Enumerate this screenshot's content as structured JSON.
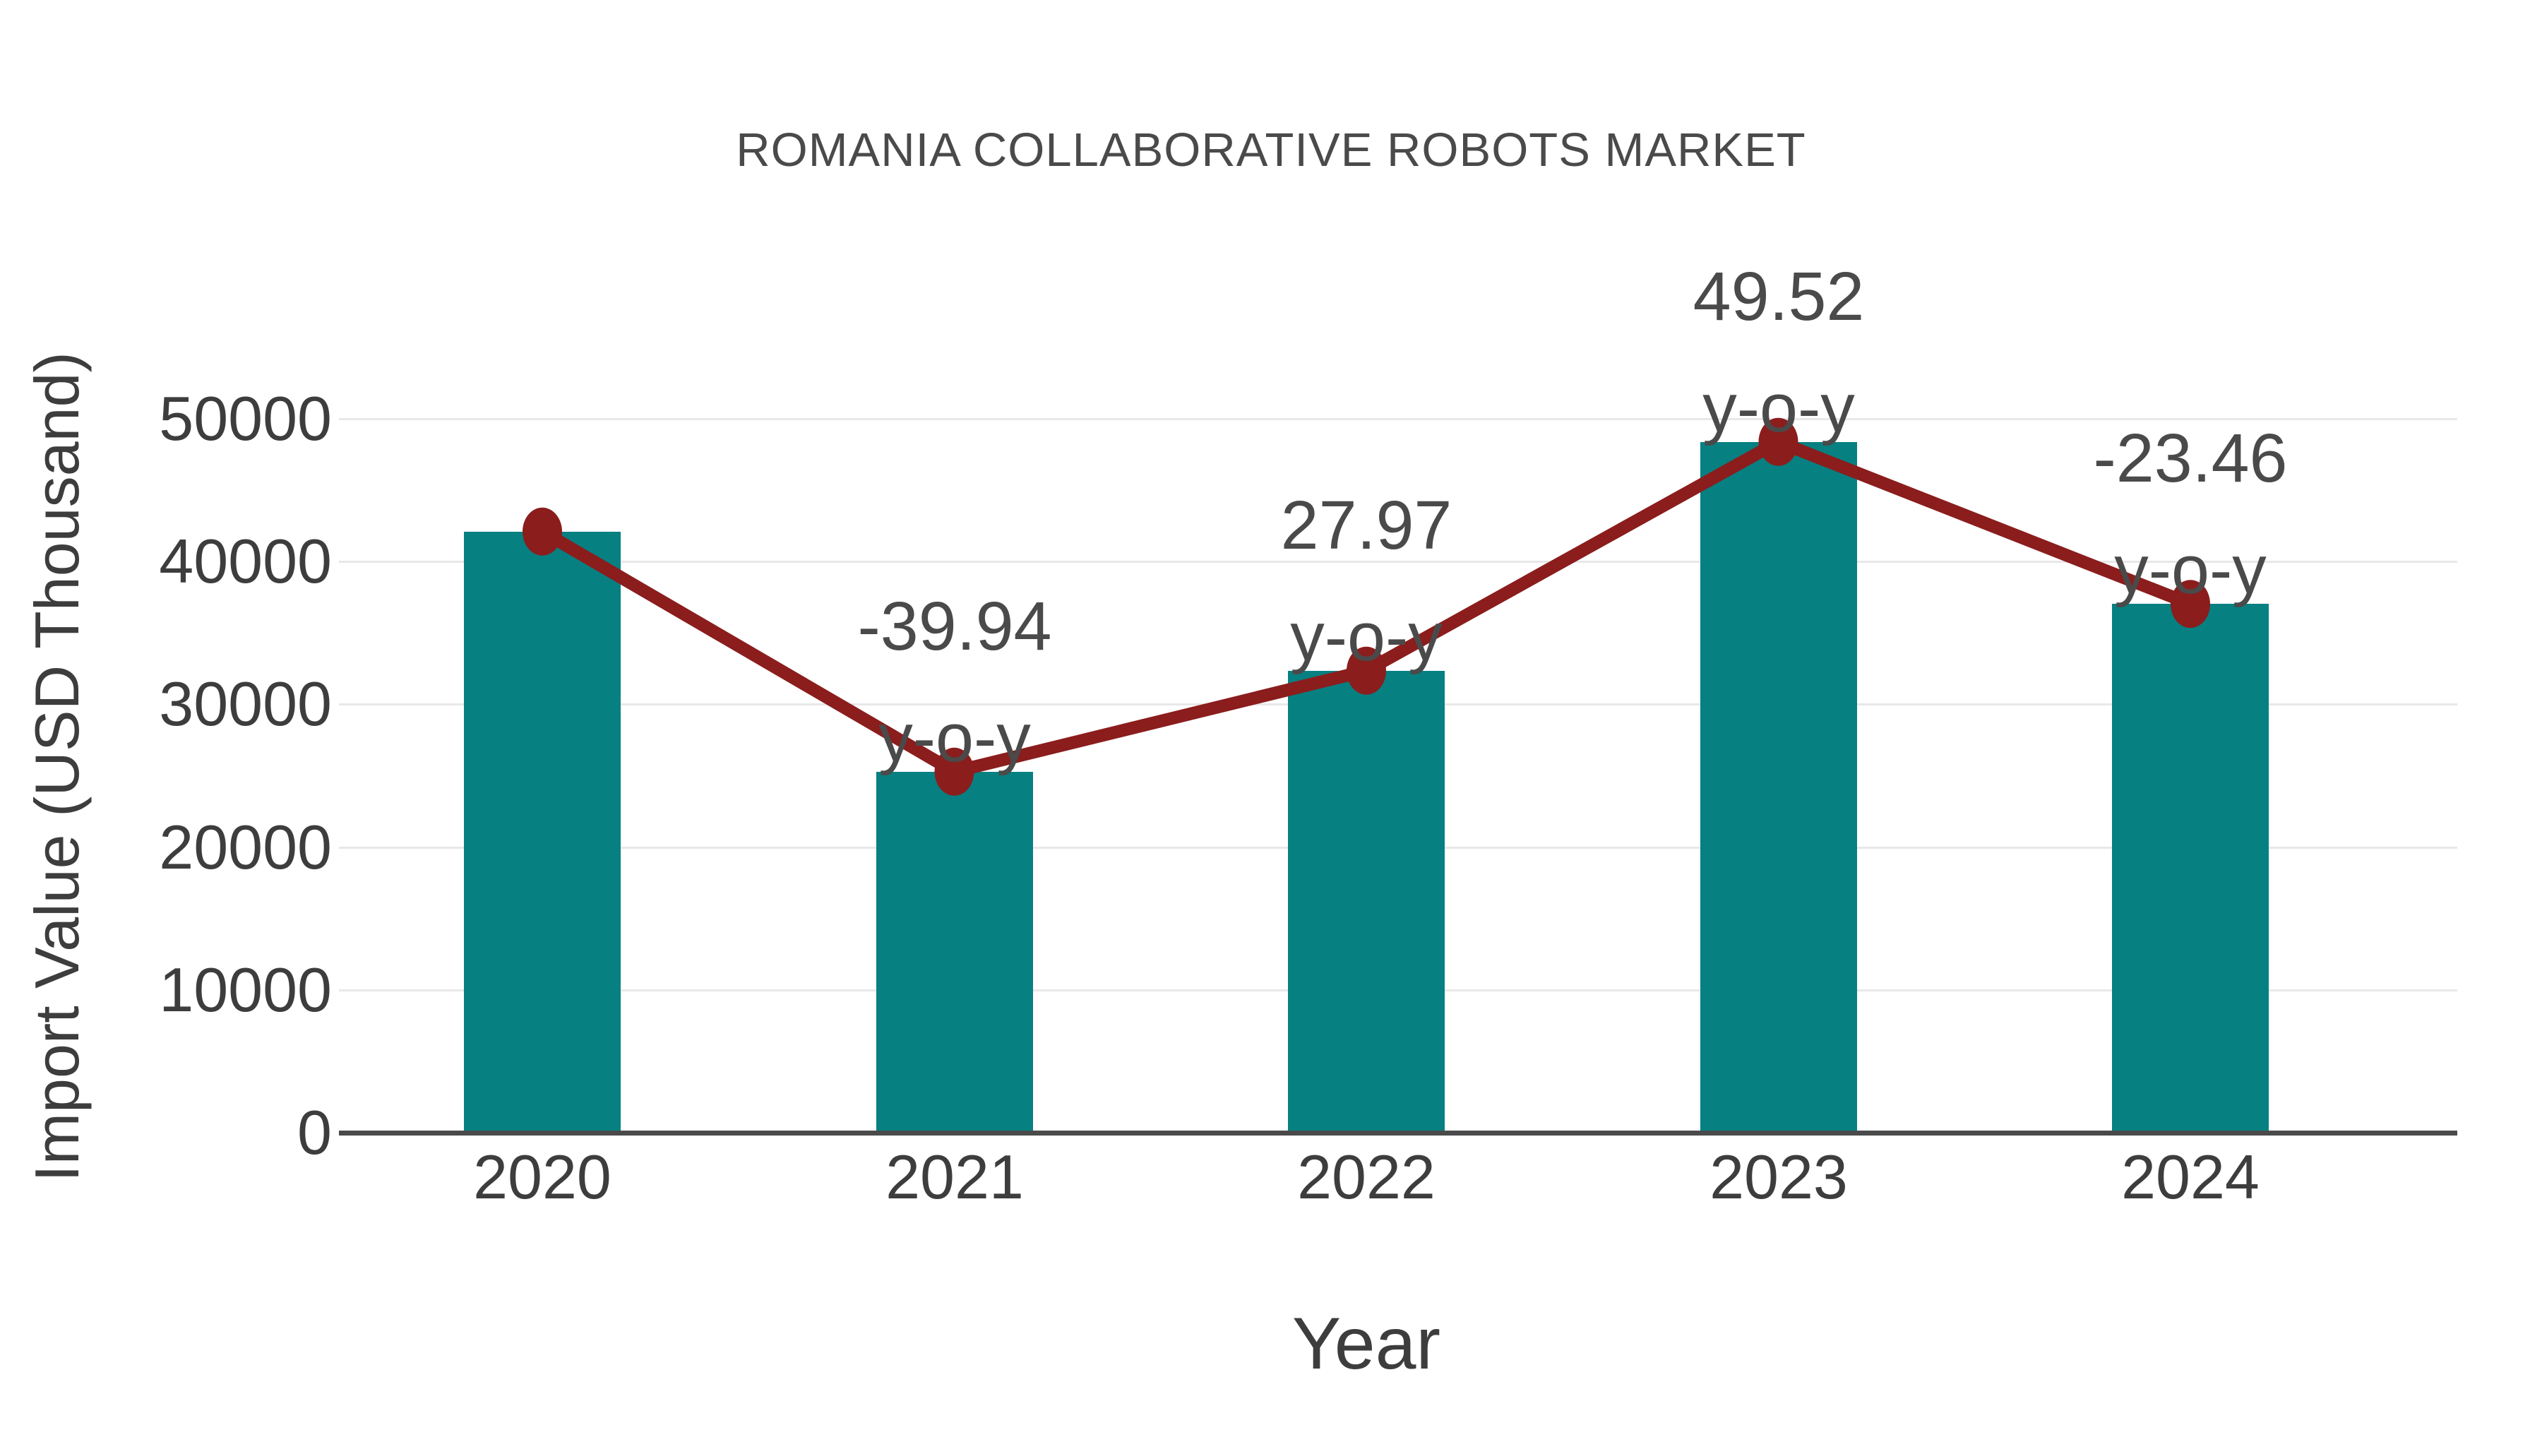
{
  "chart_data": {
    "type": "bar",
    "title": "ROMANIA COLLABORATIVE ROBOTS MARKET",
    "xlabel": "Year",
    "ylabel": "Import Value (USD Thousand)",
    "categories": [
      "2020",
      "2021",
      "2022",
      "2023",
      "2024"
    ],
    "series": [
      {
        "name": "Import Value (USD Thousand)",
        "type": "bar",
        "values": [
          42100,
          25285,
          32358,
          48382,
          37032
        ]
      },
      {
        "name": "y-o-y change (%)",
        "type": "line",
        "values": [
          null,
          -39.94,
          27.97,
          49.52,
          -23.46
        ],
        "note": "line markers sit on top of each bar"
      }
    ],
    "annotations": [
      {
        "category": "2021",
        "line1": "-39.94",
        "line2": "y-o-y"
      },
      {
        "category": "2022",
        "line1": "27.97",
        "line2": "y-o-y"
      },
      {
        "category": "2023",
        "line1": "49.52",
        "line2": "y-o-y"
      },
      {
        "category": "2024",
        "line1": "-23.46",
        "line2": "y-o-y"
      }
    ],
    "ylim": [
      0,
      50000
    ],
    "yticks": [
      "0",
      "10000",
      "20000",
      "30000",
      "40000",
      "50000"
    ],
    "grid": true,
    "legend_position": "none",
    "colors": {
      "bar": "#078082",
      "line": "#8b1d1d",
      "marker": "#8b1d1d",
      "grid": "#e8e8e8",
      "axis": "#4a4a4a",
      "text": "#3d3d3d",
      "title": "#4a4a4a",
      "background": "#ffffff"
    }
  }
}
